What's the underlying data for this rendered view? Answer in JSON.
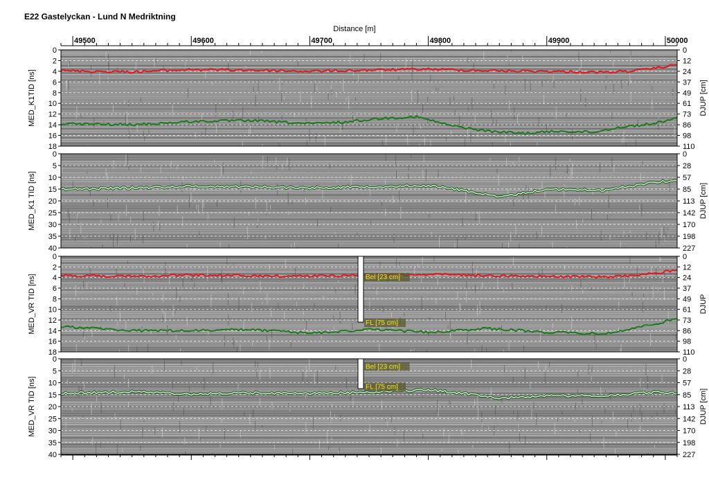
{
  "title": "E22 Gastelyckan - Lund N Medriktning",
  "chart_data": {
    "type": "line",
    "xlabel": "Distance [m]",
    "xlim": [
      49490,
      50010
    ],
    "xticks": [
      49500,
      49600,
      49700,
      49800,
      49900,
      50000
    ],
    "panels": [
      {
        "ylabel": "MED_K1TID [ns]",
        "y2label": "DJUP [cm]",
        "ylim": [
          0,
          18
        ],
        "yticks": [
          0,
          2,
          4,
          6,
          8,
          10,
          12,
          14,
          16,
          18
        ],
        "y2ticks": [
          0,
          12,
          24,
          37,
          49,
          61,
          73,
          86,
          98,
          110
        ],
        "background": "radargram",
        "series": [
          {
            "color": "#e8141b",
            "x": [
              49490,
              49550,
              49600,
              49650,
              49700,
              49750,
              49800,
              49850,
              49900,
              49950,
              49980,
              50010
            ],
            "values": [
              3.9,
              4.1,
              3.7,
              3.8,
              4.0,
              3.8,
              3.6,
              3.9,
              4.0,
              4.2,
              3.8,
              2.8
            ]
          },
          {
            "color": "#1a7a1a",
            "x": [
              49490,
              49550,
              49600,
              49650,
              49700,
              49730,
              49760,
              49790,
              49820,
              49850,
              49880,
              49910,
              49940,
              49960,
              49990,
              50010
            ],
            "values": [
              13.8,
              14.0,
              13.4,
              13.2,
              13.8,
              13.5,
              12.8,
              12.5,
              14.2,
              15.2,
              15.6,
              15.2,
              15.4,
              14.5,
              13.8,
              12.7
            ]
          }
        ]
      },
      {
        "ylabel": "MED_K1 TID [ns]",
        "y2label": "DJUP [cm]",
        "ylim": [
          0,
          40
        ],
        "yticks": [
          0,
          5,
          10,
          15,
          20,
          25,
          30,
          35,
          40
        ],
        "y2ticks": [
          0,
          28,
          57,
          85,
          113,
          142,
          170,
          198,
          227
        ],
        "background": "radargram",
        "series": [
          {
            "color": "#a9f5a9",
            "x": [
              49490,
              49550,
              49600,
              49650,
              49700,
              49750,
              49800,
              49830,
              49860,
              49900,
              49950,
              49990,
              50010
            ],
            "values": [
              15.0,
              14.5,
              13.8,
              14.0,
              14.5,
              14.0,
              13.5,
              15.5,
              18.5,
              15.0,
              15.5,
              12.0,
              11.5
            ]
          }
        ]
      },
      {
        "ylabel": "MED_VR TID [ns]",
        "y2label": "DJUP",
        "ylim": [
          0,
          18
        ],
        "yticks": [
          0,
          2,
          4,
          6,
          8,
          10,
          12,
          14,
          16,
          18
        ],
        "y2ticks": [
          0,
          12,
          24,
          37,
          49,
          61,
          73,
          86,
          98,
          110
        ],
        "background": "radargram",
        "series": [
          {
            "color": "#e8141b",
            "x": [
              49490,
              49550,
              49600,
              49650,
              49700,
              49750,
              49800,
              49850,
              49900,
              49950,
              49980,
              50010
            ],
            "values": [
              3.6,
              3.8,
              3.5,
              3.7,
              3.7,
              3.6,
              3.4,
              3.6,
              3.8,
              3.9,
              3.5,
              2.6
            ]
          },
          {
            "color": "#1a7a1a",
            "x": [
              49490,
              49550,
              49600,
              49650,
              49700,
              49750,
              49800,
              49850,
              49900,
              49950,
              49990,
              50010
            ],
            "values": [
              13.2,
              14.0,
              14.0,
              13.8,
              14.5,
              13.8,
              14.3,
              13.6,
              14.3,
              14.6,
              12.8,
              11.8
            ]
          }
        ],
        "marker": {
          "x": 49743,
          "labels": [
            {
              "text": "Bel [23 cm]",
              "y": 3.8
            },
            {
              "text": "FL [75 cm]",
              "y": 12.4
            }
          ],
          "top": 0,
          "bottom": 12.4
        }
      },
      {
        "ylabel": "MED_VR TID [ns]",
        "y2label": "DJUP [cm]",
        "ylim": [
          0,
          40
        ],
        "yticks": [
          0,
          5,
          10,
          15,
          20,
          25,
          30,
          35,
          40
        ],
        "y2ticks": [
          0,
          28,
          57,
          85,
          113,
          142,
          170,
          198,
          227
        ],
        "background": "radargram",
        "series": [
          {
            "color": "#a9f5a9",
            "x": [
              49490,
              49550,
              49600,
              49650,
              49700,
              49750,
              49800,
              49830,
              49860,
              49900,
              49950,
              49990,
              50010
            ],
            "values": [
              14.5,
              13.8,
              14.8,
              14.3,
              14.5,
              14.0,
              13.0,
              14.5,
              16.5,
              15.5,
              15.5,
              14.0,
              14.5
            ]
          }
        ],
        "marker": {
          "x": 49743,
          "labels": [
            {
              "text": "Bel [23 cm]",
              "y": 3.0
            },
            {
              "text": "FL [75 cm]",
              "y": 11.5
            }
          ],
          "top": 0,
          "bottom": 12.5
        }
      }
    ]
  }
}
